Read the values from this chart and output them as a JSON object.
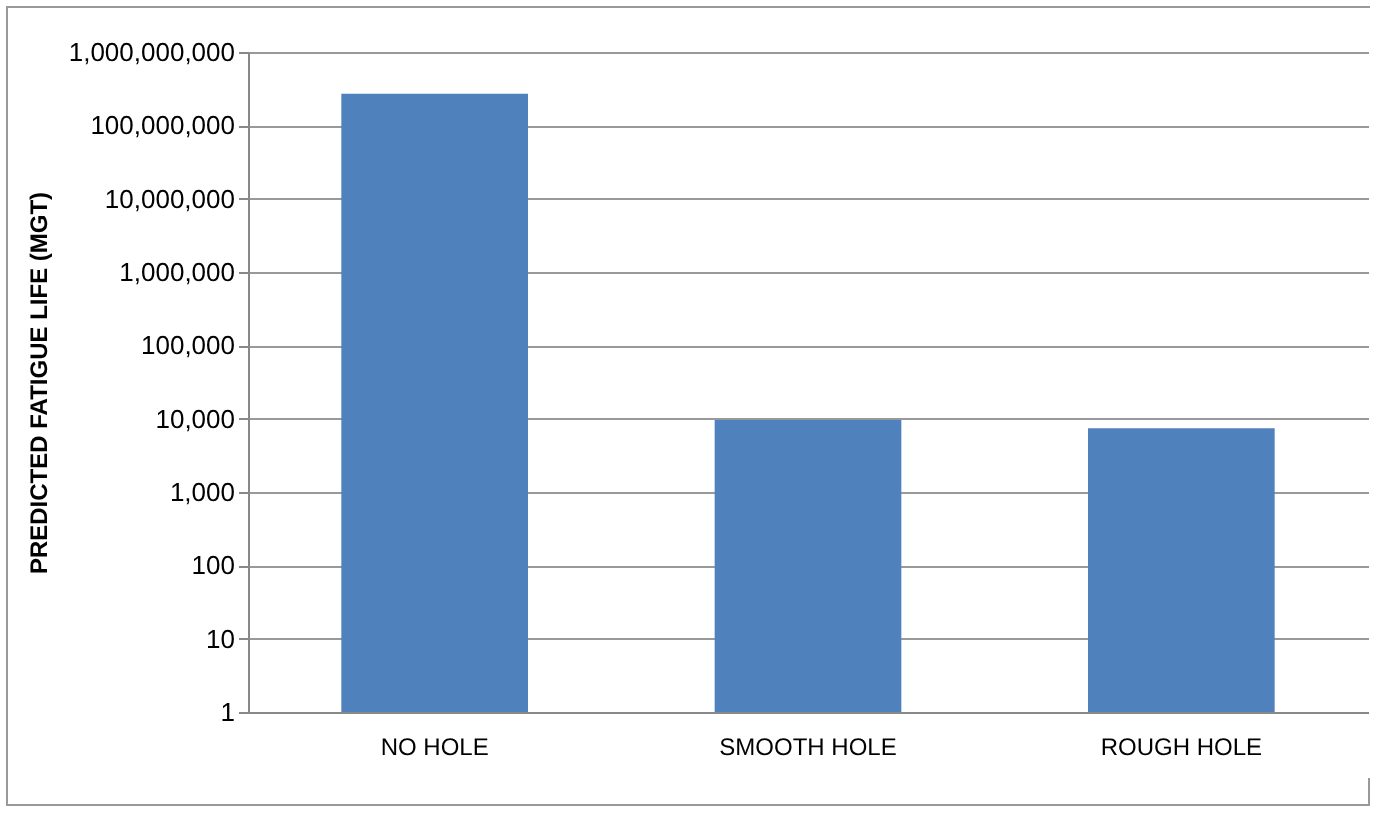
{
  "chart_data": {
    "type": "bar",
    "ylabel": "PREDICTED FATIGUE LIFE (MGT)",
    "categories": [
      "NO HOLE",
      "SMOOTH HOLE",
      "ROUGH HOLE"
    ],
    "series": [
      {
        "color": "#4f81bd",
        "values": [
          270000000,
          9600,
          7400
        ]
      }
    ],
    "log": "y",
    "ylim": [
      1,
      1000000000
    ],
    "yticks": [
      {
        "value": 1,
        "label": "1"
      },
      {
        "value": 10,
        "label": "10"
      },
      {
        "value": 100,
        "label": "100"
      },
      {
        "value": 1000,
        "label": "1,000"
      },
      {
        "value": 10000,
        "label": "10,000"
      },
      {
        "value": 100000,
        "label": "100,000"
      },
      {
        "value": 1000000,
        "label": "1,000,000"
      },
      {
        "value": 10000000,
        "label": "10,000,000"
      },
      {
        "value": 100000000,
        "label": "100,000,000"
      },
      {
        "value": 1000000000,
        "label": "1,000,000,000"
      }
    ],
    "grid": "y",
    "legend": false
  }
}
